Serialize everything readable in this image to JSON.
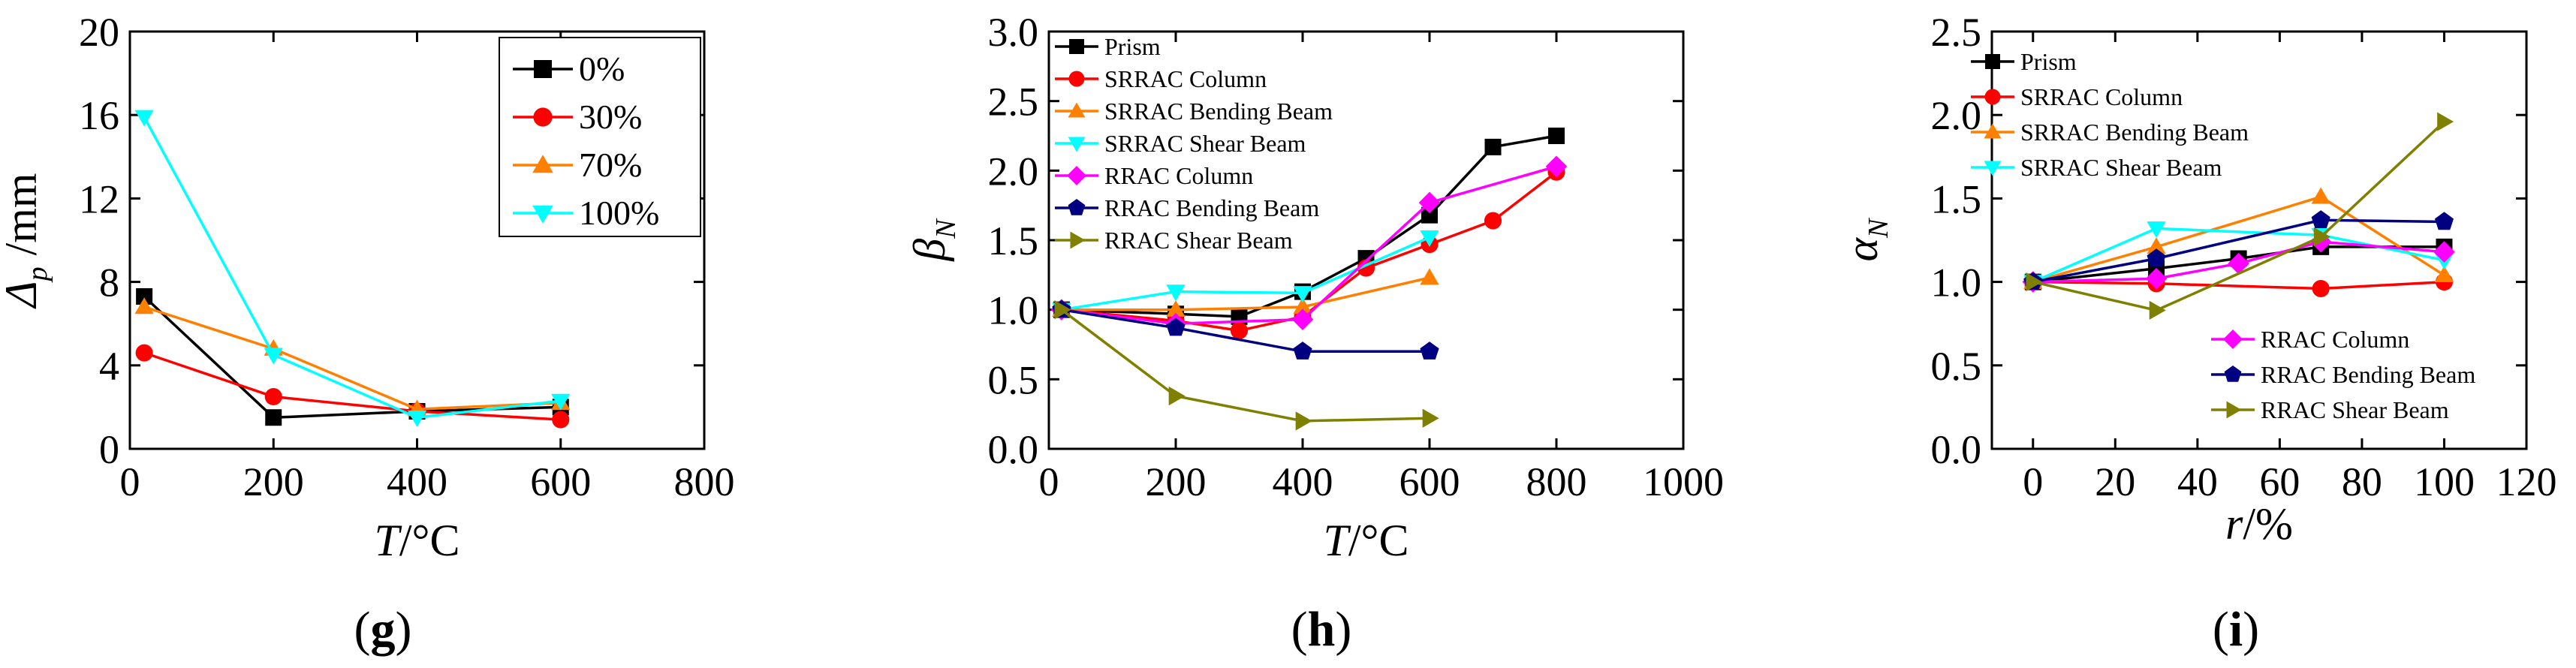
{
  "chart_data": [
    {
      "type": "line",
      "panel_label": "(g)",
      "xlabel": {
        "main": "T",
        "unit": "/°C"
      },
      "ylabel": {
        "main": "Δ",
        "sub": "p",
        "unit": " /mm"
      },
      "xlim": [
        0,
        800
      ],
      "ylim": [
        0,
        20
      ],
      "xticks": [
        0,
        200,
        400,
        600,
        800
      ],
      "yticks": [
        0,
        4,
        8,
        12,
        16,
        20
      ],
      "legend_position": "top-right",
      "series": [
        {
          "name": "0%",
          "color": "#000000",
          "marker": "square",
          "x": [
            20,
            200,
            400,
            600
          ],
          "y": [
            7.3,
            1.5,
            1.8,
            2.0
          ]
        },
        {
          "name": "30%",
          "color": "#ff0000",
          "marker": "circle",
          "x": [
            20,
            200,
            400,
            600
          ],
          "y": [
            4.6,
            2.5,
            1.8,
            1.4
          ]
        },
        {
          "name": "70%",
          "color": "#ff8000",
          "marker": "triangle-up",
          "x": [
            20,
            200,
            400,
            600
          ],
          "y": [
            6.8,
            4.8,
            1.9,
            2.2
          ]
        },
        {
          "name": "100%",
          "color": "#00ffff",
          "marker": "triangle-down",
          "x": [
            20,
            200,
            400,
            600
          ],
          "y": [
            15.9,
            4.5,
            1.5,
            2.3
          ]
        }
      ]
    },
    {
      "type": "line",
      "panel_label": "(h)",
      "xlabel": {
        "main": "T",
        "unit": "/°C"
      },
      "ylabel": {
        "main": "β",
        "sub": "N",
        "unit": ""
      },
      "xlim": [
        0,
        1000
      ],
      "ylim": [
        0,
        3.0
      ],
      "xticks": [
        0,
        200,
        400,
        600,
        800,
        1000
      ],
      "yticks": [
        "0.0",
        "0.5",
        "1.0",
        "1.5",
        "2.0",
        "2.5",
        "3.0"
      ],
      "legend_position": "top-left",
      "series": [
        {
          "name": "Prism",
          "color": "#000000",
          "marker": "square",
          "x": [
            20,
            200,
            300,
            400,
            500,
            600,
            700,
            800
          ],
          "y": [
            1.0,
            0.97,
            0.95,
            1.13,
            1.37,
            1.68,
            2.17,
            2.25
          ]
        },
        {
          "name": "SRRAC Column",
          "color": "#ff0000",
          "marker": "circle",
          "x": [
            20,
            200,
            300,
            400,
            500,
            600,
            700,
            800
          ],
          "y": [
            1.0,
            0.92,
            0.85,
            0.95,
            1.3,
            1.47,
            1.64,
            1.99
          ]
        },
        {
          "name": "SRRAC Bending Beam",
          "color": "#ff8000",
          "marker": "triangle-up",
          "x": [
            20,
            200,
            400,
            600
          ],
          "y": [
            1.0,
            1.0,
            1.02,
            1.23
          ]
        },
        {
          "name": "SRRAC Shear Beam",
          "color": "#00ffff",
          "marker": "triangle-down",
          "x": [
            20,
            200,
            400,
            600
          ],
          "y": [
            1.0,
            1.13,
            1.12,
            1.52
          ]
        },
        {
          "name": "RRAC Column",
          "color": "#ff00ff",
          "marker": "diamond",
          "x": [
            20,
            200,
            400,
            600,
            800
          ],
          "y": [
            1.0,
            0.9,
            0.93,
            1.77,
            2.03
          ]
        },
        {
          "name": "RRAC Bending Beam",
          "color": "#000080",
          "marker": "pentagon",
          "x": [
            20,
            200,
            400,
            600
          ],
          "y": [
            1.0,
            0.87,
            0.7,
            0.7
          ]
        },
        {
          "name": "RRAC Shear Beam",
          "color": "#808000",
          "marker": "triangle-right",
          "x": [
            20,
            200,
            400,
            600
          ],
          "y": [
            1.0,
            0.38,
            0.2,
            0.22
          ]
        }
      ]
    },
    {
      "type": "line",
      "panel_label": "(i)",
      "xlabel": {
        "main": "r",
        "unit": "/%"
      },
      "ylabel": {
        "main": "α",
        "sub": "N",
        "unit": ""
      },
      "xlim": [
        -10,
        120
      ],
      "ylim": [
        0,
        2.5
      ],
      "xticks": [
        0,
        20,
        40,
        60,
        80,
        100,
        120
      ],
      "yticks": [
        "0.0",
        "0.5",
        "1.0",
        "1.5",
        "2.0",
        "2.5"
      ],
      "legend_position": "top-left and bottom-right",
      "series": [
        {
          "name": "Prism",
          "color": "#000000",
          "marker": "square",
          "x": [
            0,
            30,
            50,
            70,
            100
          ],
          "y": [
            1.0,
            1.08,
            1.14,
            1.21,
            1.21
          ]
        },
        {
          "name": "SRRAC Column",
          "color": "#ff0000",
          "marker": "circle",
          "x": [
            0,
            30,
            70,
            100
          ],
          "y": [
            1.0,
            0.99,
            0.96,
            1.0
          ]
        },
        {
          "name": "SRRAC Bending Beam",
          "color": "#ff8000",
          "marker": "triangle-up",
          "x": [
            0,
            30,
            70,
            100
          ],
          "y": [
            1.0,
            1.21,
            1.51,
            1.04
          ]
        },
        {
          "name": "SRRAC Shear Beam",
          "color": "#00ffff",
          "marker": "triangle-down",
          "x": [
            0,
            30,
            70,
            100
          ],
          "y": [
            1.0,
            1.32,
            1.28,
            1.13
          ]
        },
        {
          "name": "RRAC Column",
          "color": "#ff00ff",
          "marker": "diamond",
          "x": [
            0,
            30,
            50,
            70,
            100
          ],
          "y": [
            1.0,
            1.02,
            1.11,
            1.24,
            1.18
          ]
        },
        {
          "name": "RRAC Bending Beam",
          "color": "#000080",
          "marker": "pentagon",
          "x": [
            0,
            30,
            70,
            100
          ],
          "y": [
            1.0,
            1.14,
            1.37,
            1.36
          ]
        },
        {
          "name": "RRAC Shear Beam",
          "color": "#808000",
          "marker": "triangle-right",
          "x": [
            0,
            30,
            70,
            100
          ],
          "y": [
            1.0,
            0.83,
            1.27,
            1.96
          ]
        }
      ]
    }
  ]
}
